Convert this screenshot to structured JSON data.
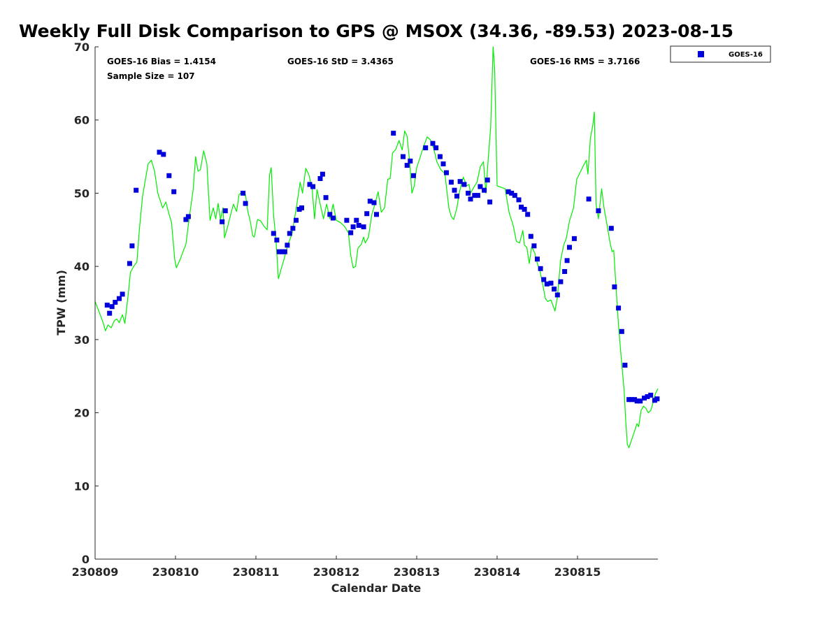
{
  "chart_data": {
    "type": "scatter+line",
    "title": "Weekly Full Disk Comparison to GPS @ MSOX (34.36, -89.53) 2023-08-15",
    "xlabel": "Calendar Date",
    "ylabel": "TPW (mm)",
    "xlim": [
      0,
      7
    ],
    "ylim": [
      0,
      70
    ],
    "x_ticks": [
      {
        "value": 0,
        "label": "230809"
      },
      {
        "value": 1,
        "label": "230810"
      },
      {
        "value": 2,
        "label": "230811"
      },
      {
        "value": 3,
        "label": "230812"
      },
      {
        "value": 4,
        "label": "230813"
      },
      {
        "value": 5,
        "label": "230814"
      },
      {
        "value": 6,
        "label": "230815"
      }
    ],
    "y_ticks": [
      0,
      10,
      20,
      30,
      40,
      50,
      60,
      70
    ],
    "stats": {
      "bias": "GOES-16 Bias = 1.4154",
      "std": "GOES-16 StD = 3.4365",
      "rms": "GOES-16 RMS = 3.7166",
      "sample": "Sample Size = 107"
    },
    "legend": {
      "label": "GOES-16",
      "color": "#0000dd",
      "placement": "top-right outside"
    },
    "series": [
      {
        "name": "GOES-16",
        "kind": "scatter",
        "color": "#0000dd",
        "points": [
          [
            0.15,
            34.7
          ],
          [
            0.18,
            33.6
          ],
          [
            0.21,
            34.5
          ],
          [
            0.25,
            35.1
          ],
          [
            0.3,
            35.6
          ],
          [
            0.34,
            36.2
          ],
          [
            0.43,
            40.4
          ],
          [
            0.46,
            42.8
          ],
          [
            0.51,
            50.4
          ],
          [
            0.8,
            55.6
          ],
          [
            0.85,
            55.3
          ],
          [
            0.92,
            52.4
          ],
          [
            0.98,
            50.2
          ],
          [
            1.13,
            46.4
          ],
          [
            1.16,
            46.8
          ],
          [
            1.58,
            46.1
          ],
          [
            1.62,
            47.6
          ],
          [
            1.84,
            50.0
          ],
          [
            1.87,
            48.6
          ],
          [
            2.22,
            44.5
          ],
          [
            2.26,
            43.6
          ],
          [
            2.29,
            42.0
          ],
          [
            2.33,
            42.0
          ],
          [
            2.36,
            42.0
          ],
          [
            2.39,
            42.9
          ],
          [
            2.42,
            44.5
          ],
          [
            2.46,
            45.2
          ],
          [
            2.5,
            46.3
          ],
          [
            2.54,
            47.8
          ],
          [
            2.57,
            48.0
          ],
          [
            2.67,
            51.2
          ],
          [
            2.71,
            50.9
          ],
          [
            2.8,
            52.0
          ],
          [
            2.83,
            52.6
          ],
          [
            2.87,
            49.4
          ],
          [
            2.92,
            47.1
          ],
          [
            2.96,
            46.6
          ],
          [
            3.13,
            46.3
          ],
          [
            3.18,
            44.6
          ],
          [
            3.21,
            45.4
          ],
          [
            3.25,
            46.3
          ],
          [
            3.28,
            45.6
          ],
          [
            3.34,
            45.4
          ],
          [
            3.38,
            47.2
          ],
          [
            3.42,
            48.9
          ],
          [
            3.47,
            48.7
          ],
          [
            3.5,
            47.1
          ],
          [
            3.71,
            58.2
          ],
          [
            3.83,
            55.0
          ],
          [
            3.88,
            53.8
          ],
          [
            3.92,
            54.4
          ],
          [
            3.96,
            52.4
          ],
          [
            4.11,
            56.2
          ],
          [
            4.2,
            56.8
          ],
          [
            4.24,
            56.2
          ],
          [
            4.29,
            55.0
          ],
          [
            4.33,
            54.0
          ],
          [
            4.37,
            52.8
          ],
          [
            4.43,
            51.5
          ],
          [
            4.47,
            50.4
          ],
          [
            4.5,
            49.6
          ],
          [
            4.54,
            51.6
          ],
          [
            4.59,
            51.2
          ],
          [
            4.64,
            50.0
          ],
          [
            4.67,
            49.2
          ],
          [
            4.72,
            49.7
          ],
          [
            4.76,
            49.7
          ],
          [
            4.79,
            50.9
          ],
          [
            4.84,
            50.4
          ],
          [
            4.88,
            51.8
          ],
          [
            4.91,
            48.8
          ],
          [
            5.14,
            50.2
          ],
          [
            5.18,
            50.0
          ],
          [
            5.22,
            49.7
          ],
          [
            5.27,
            49.1
          ],
          [
            5.3,
            48.1
          ],
          [
            5.34,
            47.8
          ],
          [
            5.38,
            47.1
          ],
          [
            5.42,
            44.1
          ],
          [
            5.46,
            42.8
          ],
          [
            5.5,
            41.0
          ],
          [
            5.54,
            39.7
          ],
          [
            5.58,
            38.2
          ],
          [
            5.62,
            37.6
          ],
          [
            5.67,
            37.7
          ],
          [
            5.71,
            36.9
          ],
          [
            5.75,
            36.1
          ],
          [
            5.79,
            37.9
          ],
          [
            5.84,
            39.3
          ],
          [
            5.87,
            40.8
          ],
          [
            5.9,
            42.6
          ],
          [
            5.96,
            43.8
          ],
          [
            6.14,
            49.2
          ],
          [
            6.26,
            47.6
          ],
          [
            6.42,
            45.2
          ],
          [
            6.46,
            37.2
          ],
          [
            6.51,
            34.3
          ],
          [
            6.55,
            31.1
          ],
          [
            6.59,
            26.5
          ],
          [
            6.64,
            21.8
          ],
          [
            6.67,
            21.8
          ],
          [
            6.71,
            21.8
          ],
          [
            6.74,
            21.6
          ],
          [
            6.78,
            21.6
          ],
          [
            6.83,
            22.0
          ],
          [
            6.87,
            22.2
          ],
          [
            6.91,
            22.4
          ],
          [
            6.96,
            21.7
          ],
          [
            6.99,
            21.9
          ]
        ]
      },
      {
        "name": "GPS",
        "kind": "line",
        "color": "#00ee00",
        "points": [
          [
            0,
            35.2
          ],
          [
            0.06,
            33.5
          ],
          [
            0.1,
            32.3
          ],
          [
            0.13,
            31.2
          ],
          [
            0.16,
            32.0
          ],
          [
            0.2,
            31.6
          ],
          [
            0.24,
            32.6
          ],
          [
            0.27,
            32.8
          ],
          [
            0.3,
            32.3
          ],
          [
            0.34,
            33.4
          ],
          [
            0.37,
            32.2
          ],
          [
            0.41,
            36.0
          ],
          [
            0.44,
            39.2
          ],
          [
            0.48,
            40.0
          ],
          [
            0.52,
            40.6
          ],
          [
            0.55,
            45.0
          ],
          [
            0.59,
            49.5
          ],
          [
            0.62,
            51.5
          ],
          [
            0.66,
            54.0
          ],
          [
            0.7,
            54.5
          ],
          [
            0.74,
            53.0
          ],
          [
            0.78,
            50.0
          ],
          [
            0.81,
            49.0
          ],
          [
            0.84,
            48.0
          ],
          [
            0.88,
            48.8
          ],
          [
            0.91,
            47.5
          ],
          [
            0.95,
            46.0
          ],
          [
            0.99,
            41.0
          ],
          [
            1.01,
            39.8
          ],
          [
            1.06,
            41.0
          ],
          [
            1.1,
            42.2
          ],
          [
            1.13,
            43.0
          ],
          [
            1.17,
            46.5
          ],
          [
            1.22,
            50.5
          ],
          [
            1.25,
            55.0
          ],
          [
            1.28,
            53.0
          ],
          [
            1.31,
            53.2
          ],
          [
            1.35,
            55.8
          ],
          [
            1.39,
            54.0
          ],
          [
            1.43,
            46.3
          ],
          [
            1.47,
            48.0
          ],
          [
            1.5,
            46.5
          ],
          [
            1.53,
            48.6
          ],
          [
            1.56,
            46.4
          ],
          [
            1.59,
            48.0
          ],
          [
            1.61,
            43.9
          ],
          [
            1.65,
            45.5
          ],
          [
            1.68,
            46.8
          ],
          [
            1.72,
            48.5
          ],
          [
            1.76,
            47.5
          ],
          [
            1.79,
            49.8
          ],
          [
            1.83,
            50.2
          ],
          [
            1.87,
            49.8
          ],
          [
            1.9,
            47.5
          ],
          [
            1.93,
            46.2
          ],
          [
            1.96,
            44.2
          ],
          [
            1.98,
            44.0
          ],
          [
            2.02,
            46.4
          ],
          [
            2.06,
            46.2
          ],
          [
            2.1,
            45.5
          ],
          [
            2.14,
            45.0
          ],
          [
            2.17,
            52.5
          ],
          [
            2.19,
            53.5
          ],
          [
            2.22,
            47.0
          ],
          [
            2.25,
            43.5
          ],
          [
            2.28,
            38.3
          ],
          [
            2.31,
            39.5
          ],
          [
            2.35,
            41.0
          ],
          [
            2.4,
            43.0
          ],
          [
            2.45,
            44.5
          ],
          [
            2.51,
            48.5
          ],
          [
            2.55,
            51.5
          ],
          [
            2.58,
            50.0
          ],
          [
            2.62,
            53.4
          ],
          [
            2.66,
            52.5
          ],
          [
            2.7,
            50.5
          ],
          [
            2.73,
            46.5
          ],
          [
            2.76,
            50.5
          ],
          [
            2.8,
            48.5
          ],
          [
            2.84,
            46.5
          ],
          [
            2.88,
            48.5
          ],
          [
            2.92,
            46.5
          ],
          [
            2.96,
            48.5
          ],
          [
            3.0,
            46.3
          ],
          [
            3.05,
            46.0
          ],
          [
            3.1,
            45.5
          ],
          [
            3.15,
            44.6
          ],
          [
            3.18,
            41.5
          ],
          [
            3.21,
            39.8
          ],
          [
            3.24,
            40.0
          ],
          [
            3.27,
            42.5
          ],
          [
            3.31,
            43.0
          ],
          [
            3.34,
            44.0
          ],
          [
            3.36,
            43.2
          ],
          [
            3.4,
            44.0
          ],
          [
            3.44,
            47.0
          ],
          [
            3.48,
            48.5
          ],
          [
            3.52,
            50.2
          ],
          [
            3.56,
            47.4
          ],
          [
            3.6,
            48.0
          ],
          [
            3.64,
            51.9
          ],
          [
            3.67,
            52.0
          ],
          [
            3.7,
            55.5
          ],
          [
            3.74,
            56.0
          ],
          [
            3.78,
            57.2
          ],
          [
            3.82,
            55.9
          ],
          [
            3.85,
            58.5
          ],
          [
            3.88,
            57.8
          ],
          [
            3.91,
            54.5
          ],
          [
            3.94,
            50.0
          ],
          [
            3.97,
            51.0
          ],
          [
            4.0,
            53.5
          ],
          [
            4.04,
            54.8
          ],
          [
            4.08,
            56.2
          ],
          [
            4.13,
            57.7
          ],
          [
            4.17,
            57.3
          ],
          [
            4.21,
            56.2
          ],
          [
            4.25,
            54.3
          ],
          [
            4.3,
            53.2
          ],
          [
            4.35,
            52.7
          ],
          [
            4.4,
            48.0
          ],
          [
            4.43,
            46.8
          ],
          [
            4.46,
            46.4
          ],
          [
            4.5,
            48.0
          ],
          [
            4.53,
            50.1
          ],
          [
            4.58,
            52.2
          ],
          [
            4.62,
            51.0
          ],
          [
            4.65,
            51.2
          ],
          [
            4.67,
            50.0
          ],
          [
            4.71,
            50.8
          ],
          [
            4.75,
            51.5
          ],
          [
            4.79,
            53.6
          ],
          [
            4.83,
            54.3
          ],
          [
            4.86,
            50.0
          ],
          [
            4.89,
            54.7
          ],
          [
            4.92,
            59.0
          ],
          [
            4.95,
            70.0
          ],
          [
            4.97,
            67.0
          ],
          [
            5.0,
            51.0
          ],
          [
            5.05,
            50.8
          ],
          [
            5.1,
            50.6
          ],
          [
            5.15,
            47.3
          ],
          [
            5.2,
            45.6
          ],
          [
            5.24,
            43.4
          ],
          [
            5.28,
            43.2
          ],
          [
            5.32,
            44.9
          ],
          [
            5.34,
            42.9
          ],
          [
            5.37,
            42.6
          ],
          [
            5.4,
            40.4
          ],
          [
            5.43,
            42.7
          ],
          [
            5.47,
            41.8
          ],
          [
            5.5,
            40.4
          ],
          [
            5.53,
            39.5
          ],
          [
            5.57,
            37.4
          ],
          [
            5.6,
            35.6
          ],
          [
            5.63,
            35.2
          ],
          [
            5.67,
            35.4
          ],
          [
            5.69,
            34.8
          ],
          [
            5.72,
            33.9
          ],
          [
            5.75,
            35.9
          ],
          [
            5.79,
            40.9
          ],
          [
            5.83,
            43.0
          ],
          [
            5.86,
            43.8
          ],
          [
            5.9,
            46.2
          ],
          [
            5.95,
            48.0
          ],
          [
            5.99,
            51.9
          ],
          [
            6.03,
            52.8
          ],
          [
            6.07,
            53.7
          ],
          [
            6.11,
            54.5
          ],
          [
            6.13,
            52.6
          ],
          [
            6.16,
            57.5
          ],
          [
            6.19,
            59.3
          ],
          [
            6.21,
            61.1
          ],
          [
            6.23,
            48.5
          ],
          [
            6.26,
            46.5
          ],
          [
            6.3,
            50.6
          ],
          [
            6.33,
            48.0
          ],
          [
            6.37,
            45.5
          ],
          [
            6.4,
            43.5
          ],
          [
            6.43,
            42.0
          ],
          [
            6.45,
            42.2
          ],
          [
            6.48,
            37.0
          ],
          [
            6.51,
            32.0
          ],
          [
            6.54,
            28.0
          ],
          [
            6.58,
            23.0
          ],
          [
            6.6,
            18.8
          ],
          [
            6.62,
            15.7
          ],
          [
            6.64,
            15.2
          ],
          [
            6.67,
            16.2
          ],
          [
            6.71,
            17.5
          ],
          [
            6.74,
            18.5
          ],
          [
            6.76,
            18.1
          ],
          [
            6.79,
            20.3
          ],
          [
            6.82,
            20.9
          ],
          [
            6.85,
            20.6
          ],
          [
            6.88,
            20.0
          ],
          [
            6.91,
            20.3
          ],
          [
            6.94,
            21.4
          ],
          [
            6.97,
            22.6
          ],
          [
            7.0,
            23.3
          ]
        ]
      }
    ]
  }
}
